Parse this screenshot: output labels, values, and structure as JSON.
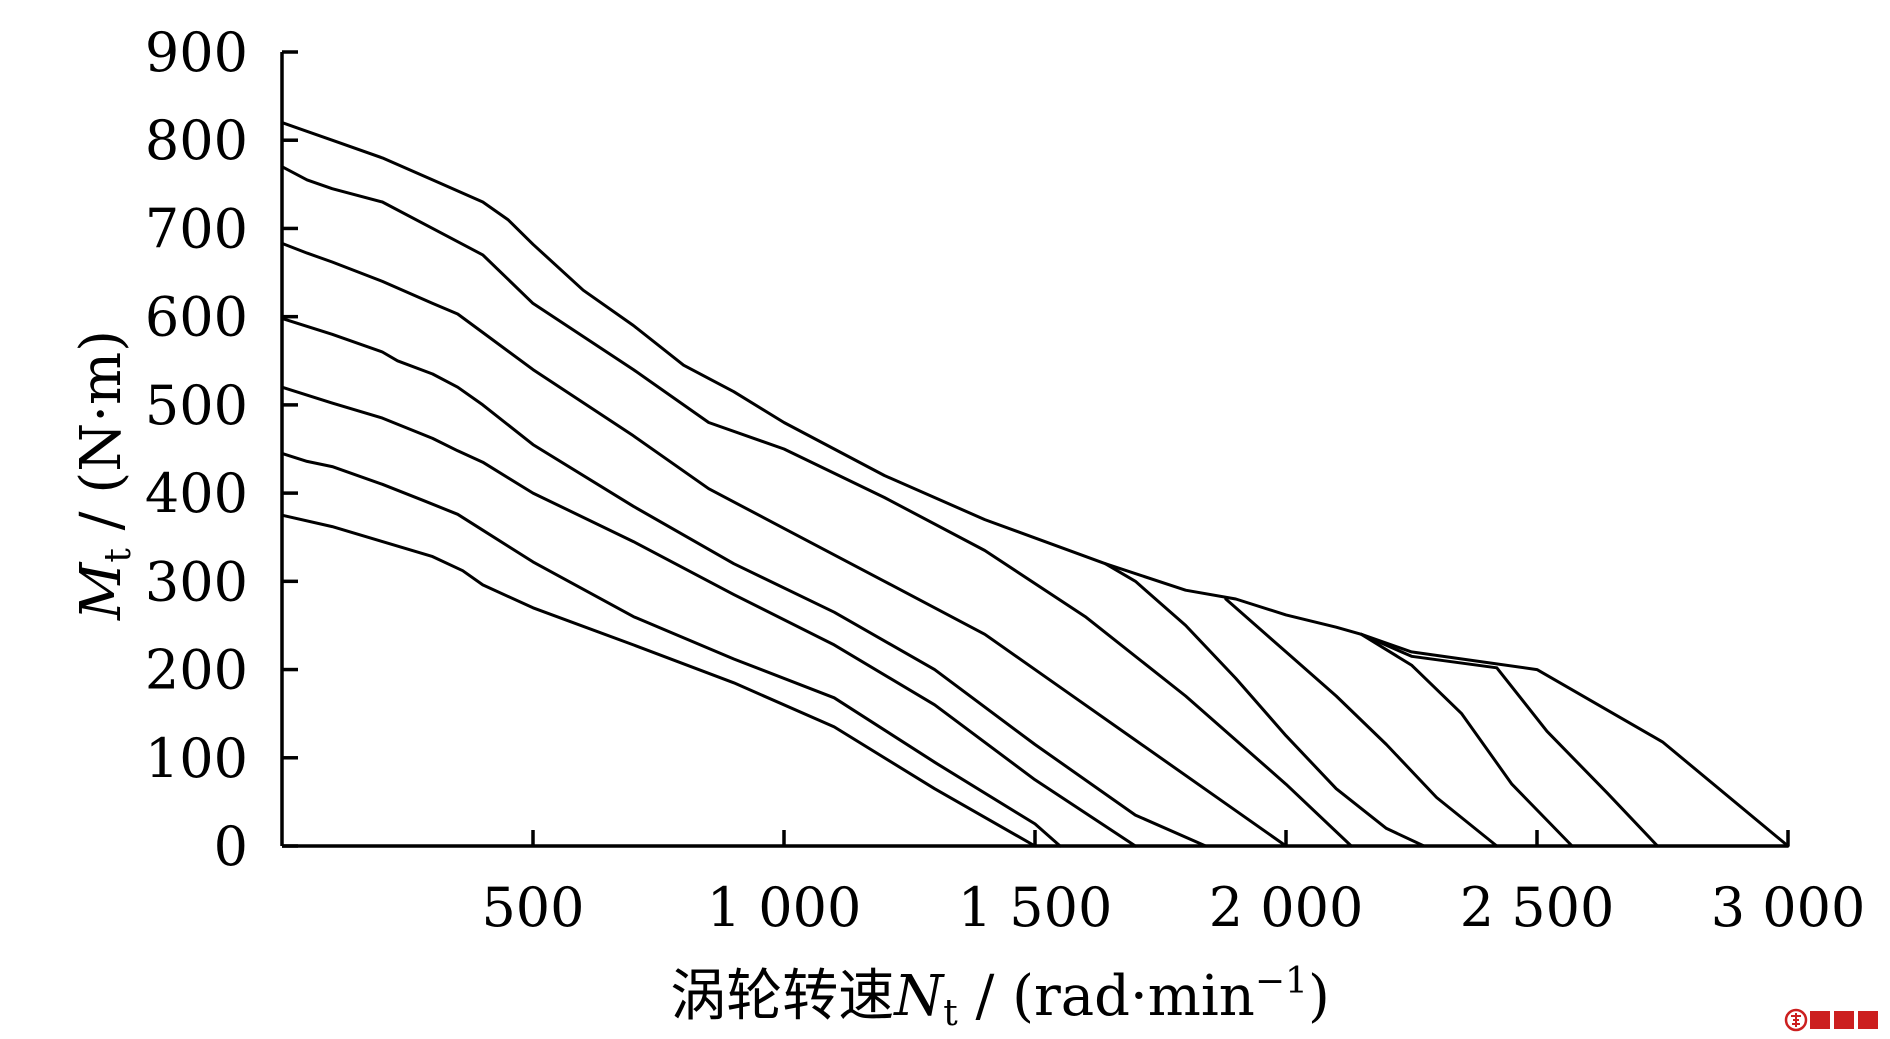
{
  "chart_data": {
    "type": "line",
    "title": "",
    "xlabel": {
      "prefix": "涡轮转速",
      "var": "N",
      "sub": "t",
      "unit": " / (rad·min",
      "sup": "−1",
      "close": ")"
    },
    "ylabel": {
      "var": "M",
      "sub": "t",
      "unit": " / (N·m)"
    },
    "xlim": [
      0,
      3000
    ],
    "ylim": [
      0,
      900
    ],
    "x_ticks": [
      {
        "value": 500,
        "label": "500"
      },
      {
        "value": 1000,
        "label": "1 000"
      },
      {
        "value": 1500,
        "label": "1 500"
      },
      {
        "value": 2000,
        "label": "2 000"
      },
      {
        "value": 2500,
        "label": "2 500"
      },
      {
        "value": 3000,
        "label": "3 000"
      }
    ],
    "y_ticks": [
      {
        "value": 0,
        "label": "0"
      },
      {
        "value": 100,
        "label": "100"
      },
      {
        "value": 200,
        "label": "200"
      },
      {
        "value": 300,
        "label": "300"
      },
      {
        "value": 400,
        "label": "400"
      },
      {
        "value": 500,
        "label": "500"
      },
      {
        "value": 600,
        "label": "600"
      },
      {
        "value": 700,
        "label": "700"
      },
      {
        "value": 800,
        "label": "800"
      },
      {
        "value": 900,
        "label": "900"
      }
    ],
    "grid": false,
    "legend": "none",
    "line_color": "#000000",
    "series": [
      {
        "points": [
          [
            0,
            375
          ],
          [
            100,
            362
          ],
          [
            200,
            345
          ],
          [
            300,
            328
          ],
          [
            360,
            312
          ],
          [
            400,
            296
          ],
          [
            500,
            270
          ],
          [
            700,
            228
          ],
          [
            900,
            185
          ],
          [
            1100,
            135
          ],
          [
            1300,
            65
          ],
          [
            1500,
            0
          ]
        ]
      },
      {
        "points": [
          [
            0,
            445
          ],
          [
            50,
            436
          ],
          [
            100,
            430
          ],
          [
            200,
            410
          ],
          [
            280,
            392
          ],
          [
            350,
            376
          ],
          [
            400,
            358
          ],
          [
            500,
            322
          ],
          [
            700,
            260
          ],
          [
            900,
            212
          ],
          [
            1100,
            168
          ],
          [
            1300,
            95
          ],
          [
            1500,
            25
          ],
          [
            1550,
            0
          ]
        ]
      },
      {
        "points": [
          [
            0,
            520
          ],
          [
            100,
            502
          ],
          [
            200,
            485
          ],
          [
            300,
            462
          ],
          [
            350,
            448
          ],
          [
            400,
            435
          ],
          [
            500,
            400
          ],
          [
            700,
            345
          ],
          [
            900,
            285
          ],
          [
            1100,
            228
          ],
          [
            1300,
            160
          ],
          [
            1500,
            75
          ],
          [
            1700,
            0
          ]
        ]
      },
      {
        "points": [
          [
            0,
            598
          ],
          [
            100,
            580
          ],
          [
            200,
            560
          ],
          [
            230,
            550
          ],
          [
            300,
            535
          ],
          [
            350,
            520
          ],
          [
            400,
            500
          ],
          [
            500,
            455
          ],
          [
            700,
            385
          ],
          [
            900,
            320
          ],
          [
            1100,
            265
          ],
          [
            1300,
            200
          ],
          [
            1500,
            115
          ],
          [
            1700,
            35
          ],
          [
            1840,
            0
          ]
        ]
      },
      {
        "points": [
          [
            0,
            683
          ],
          [
            50,
            672
          ],
          [
            100,
            662
          ],
          [
            200,
            640
          ],
          [
            300,
            615
          ],
          [
            350,
            603
          ],
          [
            400,
            582
          ],
          [
            500,
            540
          ],
          [
            700,
            465
          ],
          [
            850,
            405
          ],
          [
            1000,
            360
          ],
          [
            1200,
            300
          ],
          [
            1400,
            240
          ],
          [
            1550,
            180
          ],
          [
            1700,
            120
          ],
          [
            1900,
            40
          ],
          [
            2000,
            0
          ]
        ]
      },
      {
        "points": [
          [
            0,
            770
          ],
          [
            50,
            755
          ],
          [
            100,
            745
          ],
          [
            200,
            730
          ],
          [
            300,
            700
          ],
          [
            400,
            670
          ],
          [
            500,
            615
          ],
          [
            700,
            540
          ],
          [
            850,
            480
          ],
          [
            1000,
            450
          ],
          [
            1200,
            395
          ],
          [
            1400,
            335
          ],
          [
            1600,
            260
          ],
          [
            1800,
            170
          ],
          [
            2000,
            70
          ],
          [
            2130,
            0
          ]
        ]
      },
      {
        "points": [
          [
            0,
            820
          ],
          [
            100,
            800
          ],
          [
            200,
            780
          ],
          [
            300,
            755
          ],
          [
            400,
            730
          ],
          [
            450,
            710
          ],
          [
            500,
            682
          ],
          [
            600,
            630
          ],
          [
            700,
            590
          ],
          [
            800,
            545
          ],
          [
            900,
            515
          ],
          [
            1000,
            480
          ],
          [
            1100,
            450
          ],
          [
            1200,
            420
          ],
          [
            1400,
            370
          ],
          [
            1640,
            320
          ],
          [
            1800,
            290
          ],
          [
            1900,
            280
          ],
          [
            2000,
            262
          ],
          [
            2100,
            248
          ],
          [
            2150,
            240
          ],
          [
            2250,
            220
          ],
          [
            2500,
            200
          ],
          [
            2750,
            118
          ],
          [
            3000,
            0
          ]
        ]
      },
      {
        "points": [
          [
            1640,
            320
          ],
          [
            1700,
            300
          ],
          [
            1800,
            250
          ],
          [
            1900,
            190
          ],
          [
            2000,
            125
          ],
          [
            2100,
            65
          ],
          [
            2200,
            20
          ],
          [
            2275,
            0
          ]
        ]
      },
      {
        "points": [
          [
            1880,
            280
          ],
          [
            2000,
            220
          ],
          [
            2100,
            170
          ],
          [
            2200,
            115
          ],
          [
            2300,
            55
          ],
          [
            2420,
            0
          ]
        ]
      },
      {
        "points": [
          [
            2150,
            240
          ],
          [
            2250,
            205
          ],
          [
            2350,
            150
          ],
          [
            2450,
            70
          ],
          [
            2570,
            0
          ]
        ]
      },
      {
        "points": [
          [
            2150,
            240
          ],
          [
            2250,
            215
          ],
          [
            2420,
            202
          ],
          [
            2520,
            130
          ],
          [
            2640,
            60
          ],
          [
            2740,
            0
          ]
        ]
      }
    ]
  },
  "watermark": {
    "logo_text": "鼎达信",
    "color": "#cc1f1f"
  }
}
